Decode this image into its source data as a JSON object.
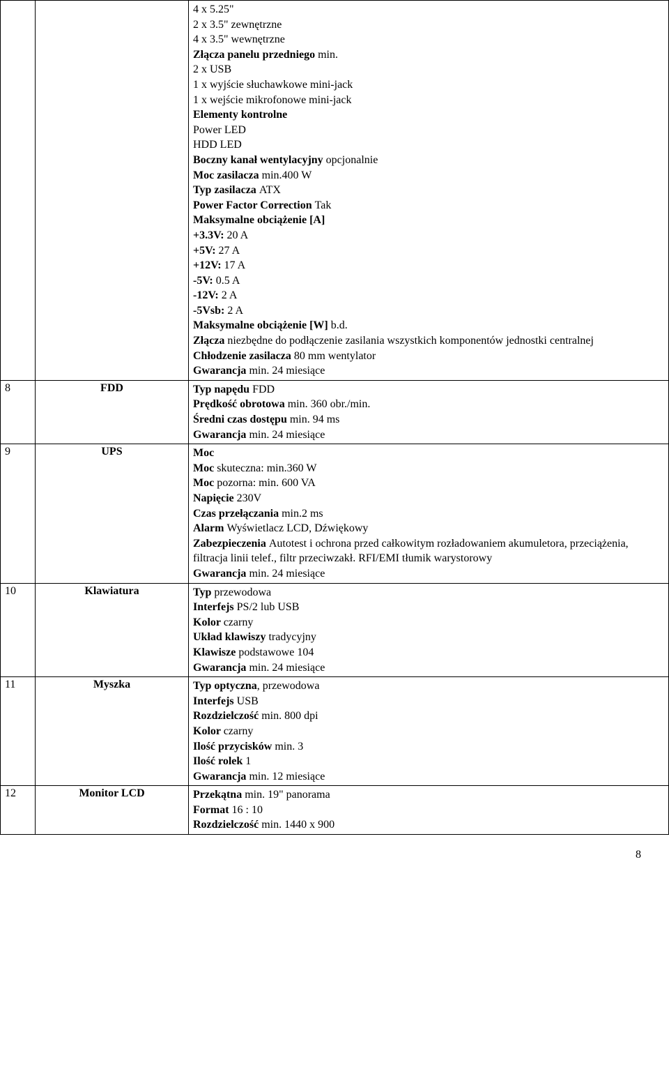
{
  "page_number": "8",
  "colors": {
    "text": "#000000",
    "border": "#000000",
    "background": "#ffffff"
  },
  "rows": [
    {
      "num": "",
      "name": "",
      "desc": [
        {
          "t": "4 x 5.25\""
        },
        {
          "t": "2 x 3.5\" zewnętrzne"
        },
        {
          "t": "4 x 3.5\" wewnętrzne"
        },
        {
          "b": "Złącza panelu przedniego ",
          "t": "min."
        },
        {
          "t": "2 x USB"
        },
        {
          "t": "1 x wyjście słuchawkowe mini-jack"
        },
        {
          "t": "1 x wejście mikrofonowe mini-jack"
        },
        {
          "b": "Elementy kontrolne"
        },
        {
          "t": "Power LED"
        },
        {
          "t": "HDD LED"
        },
        {
          "b": "Boczny kanał wentylacyjny ",
          "t": "opcjonalnie"
        },
        {
          "b": "Moc zasilacza ",
          "t": "min.400 W"
        },
        {
          "b": "Typ zasilacza ",
          "t": "ATX"
        },
        {
          "b": "Power Factor Correction ",
          "t": "Tak"
        },
        {
          "b": "Maksymalne obciążenie [A]"
        },
        {
          "b": "+3.3V: ",
          "t": "20 A"
        },
        {
          "b": "+5V: ",
          "t": "27 A"
        },
        {
          "b": "+12V: ",
          "t": "17 A"
        },
        {
          "b": "-5V: ",
          "t": "0.5 A"
        },
        {
          "b": "-12V: ",
          "t": "2 A"
        },
        {
          "b": "-5Vsb: ",
          "t": "2 A"
        },
        {
          "b": "Maksymalne obciążenie [W] ",
          "t": "b.d."
        },
        {
          "b": "Złącza ",
          "t": "niezbędne do podłączenie zasilania wszystkich komponentów jednostki centralnej"
        },
        {
          "b": "Chłodzenie zasilacza ",
          "t": "80 mm wentylator"
        },
        {
          "b": "Gwarancja ",
          "t": "min. 24 miesiące"
        }
      ]
    },
    {
      "num": "8",
      "name": "FDD",
      "desc": [
        {
          "b": "Typ napędu ",
          "t": "FDD"
        },
        {
          "b": "Prędkość obrotowa ",
          "t": "min. 360 obr./min."
        },
        {
          "b": "Średni czas dostępu ",
          "t": "min. 94 ms"
        },
        {
          "b": "Gwarancja ",
          "t": "min. 24 miesiące"
        }
      ]
    },
    {
      "num": "9",
      "name": "UPS",
      "desc": [
        {
          "b": "Moc"
        },
        {
          "b": "Moc ",
          "t": "skuteczna: min.360 W"
        },
        {
          "b": "Moc ",
          "t": "pozorna: min. 600 VA"
        },
        {
          "b": "Napięcie ",
          "t": "230V"
        },
        {
          "b": "Czas przełączania ",
          "t": "min.2 ms"
        },
        {
          "b": "Alarm ",
          "t": "Wyświetlacz LCD, Dźwiękowy"
        },
        {
          "b": "Zabezpieczenia ",
          "t": "Autotest i ochrona przed całkowitym rozładowaniem akumuletora, przeciążenia, filtracja linii telef., filtr przeciwzakł. RFI/EMI tłumik warystorowy"
        },
        {
          "b": "Gwarancja ",
          "t": "min. 24 miesiące"
        }
      ]
    },
    {
      "num": "10",
      "name": "Klawiatura",
      "desc": [
        {
          "b": "Typ ",
          "t": "przewodowa"
        },
        {
          "b": "Interfejs ",
          "t": "PS/2 lub USB"
        },
        {
          "b": "Kolor ",
          "t": "czarny"
        },
        {
          "b": "Układ klawiszy ",
          "t": "tradycyjny"
        },
        {
          "b": "Klawisze ",
          "t": "podstawowe 104"
        },
        {
          "b": "Gwarancja ",
          "t": "min. 24 miesiące"
        }
      ]
    },
    {
      "num": "11",
      "name": "Myszka",
      "desc": [
        {
          "b": "Typ optyczna",
          "t": ", przewodowa"
        },
        {
          "b": "Interfejs ",
          "t": "USB"
        },
        {
          "b": "Rozdzielczość ",
          "t": "min. 800 dpi"
        },
        {
          "b": "Kolor ",
          "t": "czarny"
        },
        {
          "b": "Ilość przycisków ",
          "t": "min. 3"
        },
        {
          "b": "Ilość rolek ",
          "t": "1"
        },
        {
          "b": "Gwarancja ",
          "t": "min. 12 miesiące"
        }
      ]
    },
    {
      "num": "12",
      "name": "Monitor LCD",
      "desc": [
        {
          "b": "Przekątna ",
          "t": "min. 19\" panorama"
        },
        {
          "b": "Format ",
          "t": "16 : 10"
        },
        {
          "b": "Rozdzielczość ",
          "t": "min. 1440 x 900"
        }
      ]
    }
  ]
}
